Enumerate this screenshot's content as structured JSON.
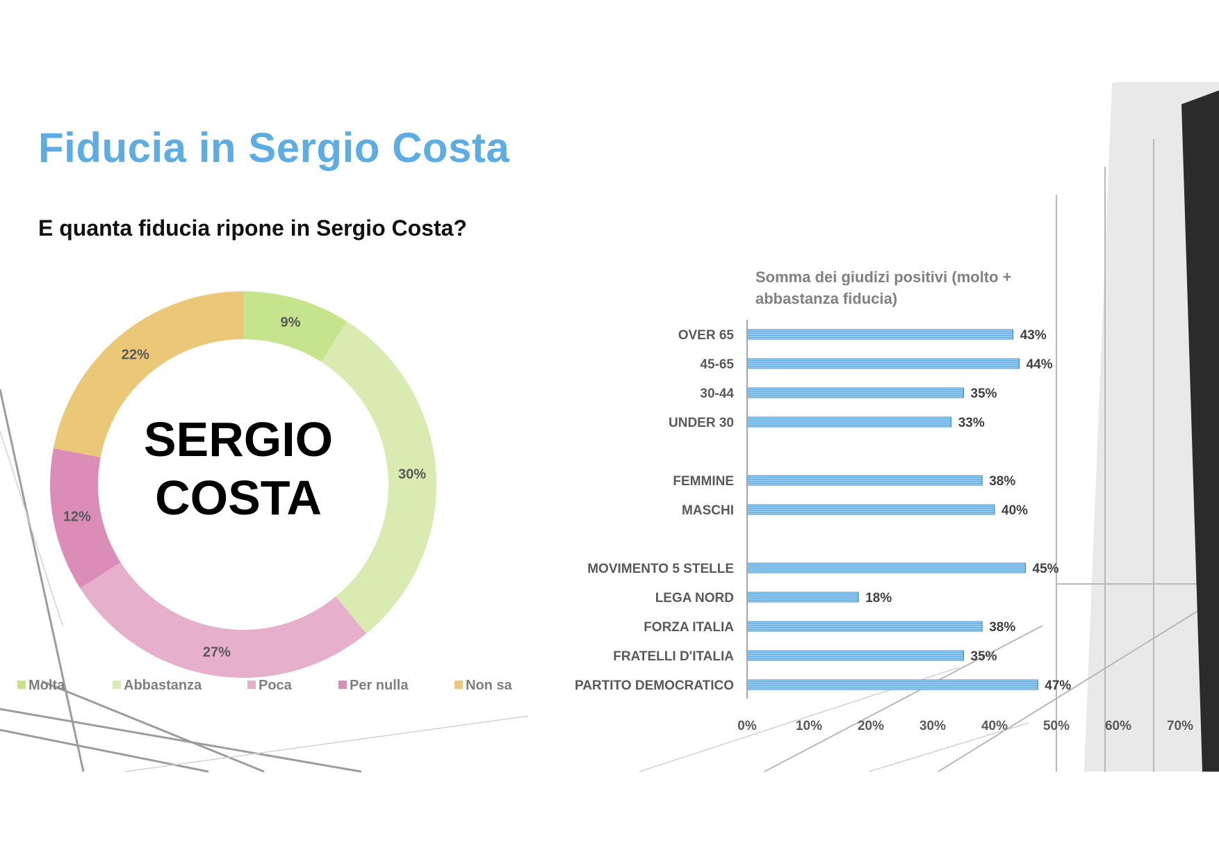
{
  "slide": {
    "title": "Fiducia in Sergio Costa",
    "subtitle": "E quanta fiducia ripone in Sergio Costa?",
    "center_label": [
      "SERGIO",
      "COSTA"
    ],
    "title_color": "#5dade2"
  },
  "chart_data": [
    {
      "type": "pie",
      "variant": "donut",
      "categories": [
        "Molta",
        "Abbastanza",
        "Poca",
        "Per nulla",
        "Non sa"
      ],
      "values": [
        9,
        30,
        27,
        12,
        22
      ],
      "data_labels": [
        "9%",
        "30%",
        "27%",
        "12%",
        "22%"
      ],
      "colors": [
        "#c6e48b",
        "#d9ebb0",
        "#e6b0cd",
        "#db8db7",
        "#ebc877"
      ],
      "legend_position": "bottom"
    },
    {
      "type": "bar",
      "orientation": "horizontal",
      "title": "Somma dei giudizi positivi (molto + abbastanza fiducia)",
      "categories": [
        "OVER 65",
        "45-65",
        "30-44",
        "UNDER 30",
        "FEMMINE",
        "MASCHI",
        "MOVIMENTO 5 STELLE",
        "LEGA NORD",
        "FORZA ITALIA",
        "FRATELLI D'ITALIA",
        "PARTITO DEMOCRATICO"
      ],
      "groups": [
        [
          0,
          1,
          2,
          3
        ],
        [
          4,
          5
        ],
        [
          6,
          7,
          8,
          9,
          10
        ]
      ],
      "values": [
        43,
        44,
        35,
        33,
        38,
        40,
        45,
        18,
        38,
        35,
        47
      ],
      "data_labels": [
        "43%",
        "44%",
        "35%",
        "33%",
        "38%",
        "40%",
        "45%",
        "18%",
        "38%",
        "35%",
        "47%"
      ],
      "xlim": [
        0,
        70
      ],
      "xticks": [
        "0%",
        "10%",
        "20%",
        "30%",
        "40%",
        "50%",
        "60%",
        "70%"
      ],
      "bar_color": "#5dade2",
      "grid": false
    }
  ]
}
